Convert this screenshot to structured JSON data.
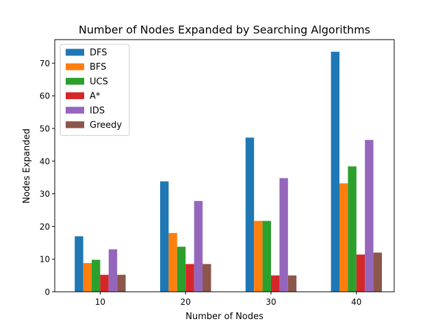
{
  "chart_data": {
    "type": "bar",
    "title": "Number of Nodes Expanded by Searching Algorithms",
    "xlabel": "Number of Nodes",
    "ylabel": "Nodes Expanded",
    "categories": [
      "10",
      "20",
      "30",
      "40"
    ],
    "series": [
      {
        "name": "DFS",
        "color": "#1f77b4",
        "values": [
          17.0,
          33.8,
          47.2,
          73.5
        ]
      },
      {
        "name": "BFS",
        "color": "#ff7f0e",
        "values": [
          8.8,
          18.0,
          21.7,
          33.2
        ]
      },
      {
        "name": "UCS",
        "color": "#2ca02c",
        "values": [
          9.8,
          13.8,
          21.7,
          38.4
        ]
      },
      {
        "name": "A*",
        "color": "#d62728",
        "values": [
          5.2,
          8.5,
          5.0,
          11.4
        ]
      },
      {
        "name": "IDS",
        "color": "#9467bd",
        "values": [
          13.0,
          27.8,
          34.8,
          46.5
        ]
      },
      {
        "name": "Greedy",
        "color": "#8c564b",
        "values": [
          5.2,
          8.5,
          5.0,
          12.0
        ]
      }
    ],
    "ylim": [
      0,
      77.2
    ],
    "yticks": [
      0,
      10,
      20,
      30,
      40,
      50,
      60,
      70
    ],
    "legend_position": "top-left",
    "grid": false
  }
}
